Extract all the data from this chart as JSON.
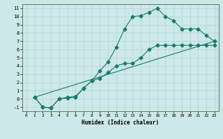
{
  "title": "",
  "xlabel": "Humidex (Indice chaleur)",
  "bg_color": "#cce8e8",
  "grid_color": "#b8d8d8",
  "line_color": "#1a7a6e",
  "xlim": [
    -0.5,
    23.5
  ],
  "ylim": [
    -1.5,
    11.5
  ],
  "xticks": [
    0,
    1,
    2,
    3,
    4,
    5,
    6,
    7,
    8,
    9,
    10,
    11,
    12,
    13,
    14,
    15,
    16,
    17,
    18,
    19,
    20,
    21,
    22,
    23
  ],
  "yticks": [
    -1,
    0,
    1,
    2,
    3,
    4,
    5,
    6,
    7,
    8,
    9,
    10,
    11
  ],
  "curve1_x": [
    1,
    2,
    3,
    4,
    5,
    6,
    7,
    8,
    9,
    10,
    11,
    12,
    13,
    14,
    15,
    16,
    17,
    18,
    19,
    20,
    21,
    22,
    23
  ],
  "curve1_y": [
    0.2,
    -1.0,
    -1.1,
    0.0,
    0.1,
    0.2,
    1.3,
    2.2,
    3.4,
    4.5,
    6.3,
    8.5,
    10.0,
    10.1,
    10.5,
    11.0,
    10.0,
    9.5,
    8.5,
    8.5,
    8.5,
    7.7,
    7.0
  ],
  "curve2_x": [
    1,
    2,
    3,
    4,
    5,
    6,
    7,
    8,
    9,
    10,
    11,
    12,
    13,
    14,
    15,
    16,
    17,
    18,
    19,
    20,
    21,
    22,
    23
  ],
  "curve2_y": [
    0.2,
    -1.0,
    -1.1,
    0.0,
    0.2,
    0.3,
    1.3,
    2.2,
    2.5,
    3.2,
    4.0,
    4.3,
    4.3,
    5.0,
    6.0,
    6.5,
    6.5,
    6.5,
    6.5,
    6.5,
    6.5,
    6.5,
    6.5
  ],
  "curve3_x": [
    1,
    23
  ],
  "curve3_y": [
    0.2,
    7.0
  ],
  "markersize": 2.5,
  "linewidth": 0.8
}
